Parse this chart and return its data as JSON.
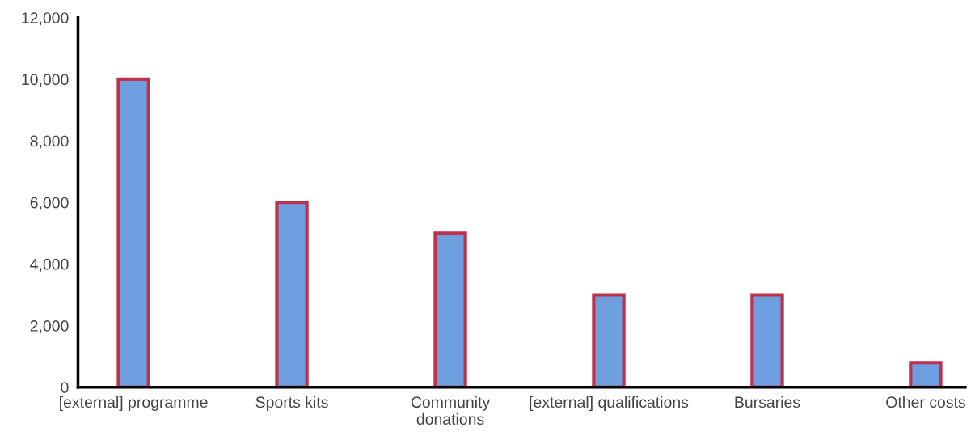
{
  "chart_data": {
    "type": "bar",
    "categories": [
      "[external] programme",
      "Sports kits",
      "Community\ndonations",
      "[external] qualifications",
      "Bursaries",
      "Other costs"
    ],
    "values": [
      10000,
      6000,
      5000,
      3000,
      3000,
      800
    ],
    "color": "#6d9ee0",
    "ylim": [
      0,
      12000
    ],
    "yticks": [
      {
        "value": 0,
        "label": "0"
      },
      {
        "value": 2000,
        "label": "2,000"
      },
      {
        "value": 4000,
        "label": "4,000"
      },
      {
        "value": 6000,
        "label": "6,000"
      },
      {
        "value": 8000,
        "label": "8,000"
      },
      {
        "value": 10000,
        "label": "10,000"
      },
      {
        "value": 12000,
        "label": "12,000"
      }
    ],
    "grid": false,
    "legend": false
  }
}
